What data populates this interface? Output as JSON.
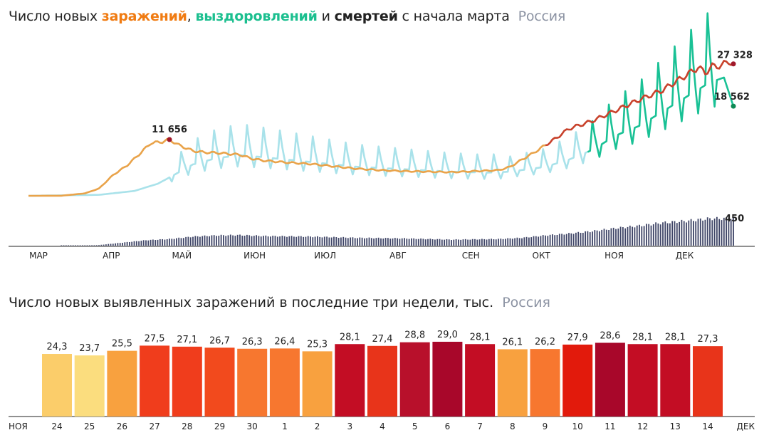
{
  "header1": {
    "prefix": "Число новых",
    "word_infections": "заражений",
    "sep1": ",",
    "word_recoveries": "выздоровлений",
    "sep2": "и",
    "word_deaths": "смертей",
    "suffix": "с начала марта",
    "region": "Россия"
  },
  "header2": {
    "text": "Число новых выявленных заражений в последние три недели, тыс.",
    "region": "Россия"
  },
  "colors": {
    "infections": "#e9a34a",
    "infections_late": "#c8422c",
    "recoveries": "#a9e2ea",
    "recoveries_late": "#19c195",
    "deaths": "#3e4466",
    "highlight_day": "#e2431a"
  },
  "chart_data": [
    {
      "type": "line",
      "x_unit": "day",
      "x_start": "2020-03-01",
      "x_end": "2020-12-08",
      "month_ticks": [
        "МАР",
        "АПР",
        "МАЙ",
        "ИЮН",
        "ИЮЛ",
        "АВГ",
        "СЕН",
        "ОКТ",
        "НОЯ",
        "ДЕК"
      ],
      "grid": false,
      "legend": "in title",
      "series": [
        {
          "name": "заражений",
          "anchors": [
            [
              0,
              0
            ],
            [
              14,
              20
            ],
            [
              24,
              500
            ],
            [
              30,
              1500
            ],
            [
              36,
              4300
            ],
            [
              42,
              6300
            ],
            [
              48,
              9000
            ],
            [
              52,
              10900
            ],
            [
              57,
              11200
            ],
            [
              60,
              11656
            ],
            [
              64,
              10500
            ],
            [
              70,
              9300
            ],
            [
              75,
              9000
            ],
            [
              80,
              8900
            ],
            [
              85,
              8700
            ],
            [
              90,
              8500
            ],
            [
              95,
              7700
            ],
            [
              100,
              7300
            ],
            [
              110,
              6900
            ],
            [
              120,
              6600
            ],
            [
              130,
              6100
            ],
            [
              140,
              5600
            ],
            [
              150,
              5300
            ],
            [
              160,
              5100
            ],
            [
              170,
              5000
            ],
            [
              180,
              4900
            ],
            [
              190,
              5100
            ],
            [
              200,
              5300
            ],
            [
              205,
              6000
            ],
            [
              210,
              7500
            ],
            [
              215,
              8900
            ],
            [
              220,
              10500
            ],
            [
              225,
              12100
            ],
            [
              230,
              13900
            ],
            [
              240,
              15500
            ],
            [
              250,
              17700
            ],
            [
              260,
              19900
            ],
            [
              270,
              21900
            ],
            [
              275,
              23500
            ],
            [
              280,
              25000
            ],
            [
              285,
              26600
            ],
            [
              288,
              25500
            ],
            [
              291,
              26800
            ],
            [
              295,
              27000
            ],
            [
              298,
              27900
            ],
            [
              300,
              27328
            ]
          ],
          "peak_label": "11 656",
          "last_label": "27 328"
        },
        {
          "name": "выздоровлений",
          "anchors": [
            [
              0,
              0
            ],
            [
              30,
              200
            ],
            [
              45,
              1000
            ],
            [
              55,
              2500
            ],
            [
              60,
              3800
            ],
            [
              70,
              6500
            ],
            [
              80,
              7800
            ],
            [
              90,
              8400
            ],
            [
              100,
              8000
            ],
            [
              120,
              7000
            ],
            [
              140,
              6000
            ],
            [
              160,
              5500
            ],
            [
              180,
              5000
            ],
            [
              195,
              4800
            ],
            [
              205,
              5000
            ],
            [
              220,
              6000
            ],
            [
              230,
              7500
            ],
            [
              240,
              9500
            ],
            [
              250,
              12500
            ],
            [
              260,
              14500
            ],
            [
              270,
              17500
            ],
            [
              280,
              20500
            ],
            [
              290,
              23500
            ],
            [
              296,
              24500
            ],
            [
              300,
              18562
            ]
          ],
          "weekly_peaks": [
            [
              92,
              16000
            ],
            [
              130,
              16500
            ],
            [
              160,
              15000
            ],
            [
              196,
              8500
            ],
            [
              250,
              20500
            ],
            [
              262,
              24000
            ],
            [
              271,
              26000
            ],
            [
              279,
              29000
            ],
            [
              285,
              28000
            ],
            [
              293,
              29500
            ]
          ],
          "last_label": "18 562"
        },
        {
          "name": "смертей",
          "anchors": [
            [
              0,
              0
            ],
            [
              20,
              2
            ],
            [
              30,
              10
            ],
            [
              40,
              50
            ],
            [
              50,
              90
            ],
            [
              60,
              110
            ],
            [
              70,
              150
            ],
            [
              80,
              170
            ],
            [
              90,
              175
            ],
            [
              100,
              160
            ],
            [
              120,
              150
            ],
            [
              140,
              130
            ],
            [
              160,
              120
            ],
            [
              180,
              100
            ],
            [
              200,
              110
            ],
            [
              210,
              130
            ],
            [
              220,
              170
            ],
            [
              230,
              200
            ],
            [
              240,
              240
            ],
            [
              250,
              290
            ],
            [
              260,
              330
            ],
            [
              270,
              380
            ],
            [
              280,
              410
            ],
            [
              290,
              450
            ],
            [
              300,
              450
            ]
          ],
          "last_label": "450"
        }
      ]
    },
    {
      "type": "bar",
      "ylabel": "тыс.",
      "edge_left": "НОЯ",
      "edge_right": "ДЕК",
      "categories": [
        "24",
        "25",
        "26",
        "27",
        "28",
        "29",
        "30",
        "1",
        "2",
        "3",
        "4",
        "5",
        "6",
        "7",
        "8",
        "9",
        "10",
        "11",
        "12",
        "13",
        "14"
      ],
      "values": [
        24.3,
        23.7,
        25.5,
        27.5,
        27.1,
        26.7,
        26.3,
        26.4,
        25.3,
        28.1,
        27.4,
        28.8,
        29.0,
        28.1,
        26.1,
        26.2,
        27.9,
        28.6,
        28.1,
        28.1,
        27.3
      ],
      "labels": [
        "24,3",
        "23,7",
        "25,5",
        "27,5",
        "27,1",
        "26,7",
        "26,3",
        "26,4",
        "25,3",
        "28,1",
        "27,4",
        "28,8",
        "29,0",
        "28,1",
        "26,1",
        "26,2",
        "27,9",
        "28,6",
        "28,1",
        "28,1",
        "27,3"
      ],
      "bar_colors": [
        "#fbcd6a",
        "#fbdd7e",
        "#f8a13f",
        "#f03d1c",
        "#f03d1c",
        "#f24a1d",
        "#f7772f",
        "#f7772f",
        "#f8a13f",
        "#c30d24",
        "#e8341a",
        "#b8102b",
        "#a8072a",
        "#c30d24",
        "#f8a13f",
        "#f7772f",
        "#e21a0c",
        "#a8072a",
        "#c30d24",
        "#c30d24",
        "#e8341a"
      ],
      "highlight_days": [
        "28",
        "29",
        "5",
        "6",
        "12",
        "13"
      ]
    }
  ]
}
